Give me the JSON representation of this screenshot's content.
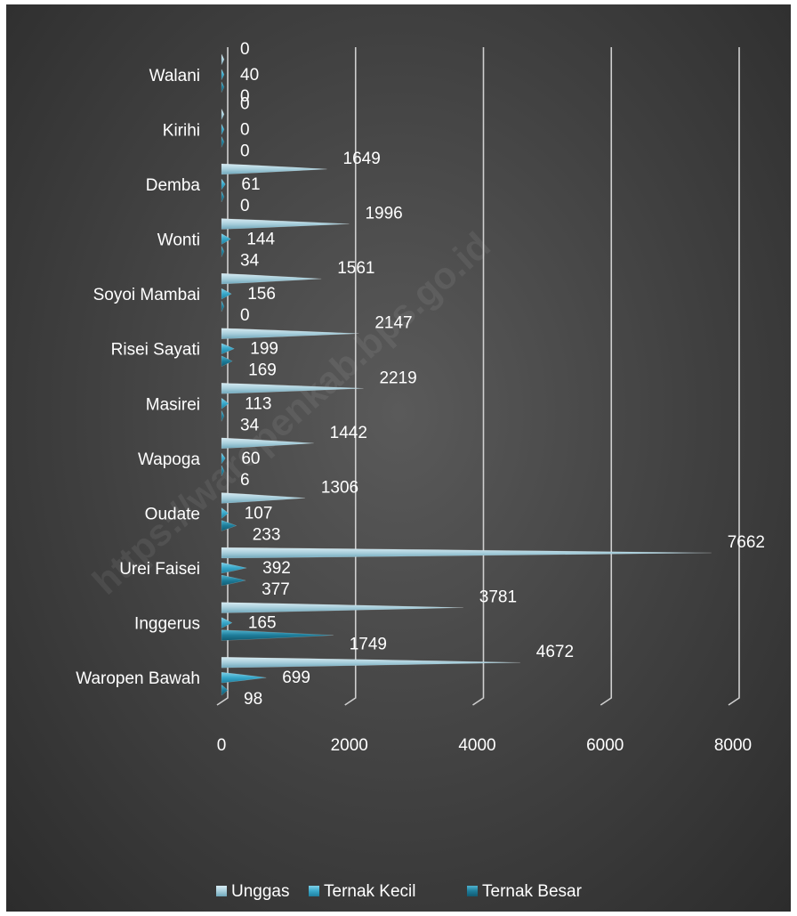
{
  "chart_data": {
    "type": "bar",
    "orientation": "horizontal",
    "categories": [
      "Waropen Bawah",
      "Inggerus",
      "Urei Faisei",
      "Oudate",
      "Wapoga",
      "Masirei",
      "Risei Sayati",
      "Soyoi Mambai",
      "Wonti",
      "Demba",
      "Kirihi",
      "Walani"
    ],
    "series": [
      {
        "name": "Unggas",
        "values": [
          4672,
          3781,
          7662,
          1306,
          1442,
          2219,
          2147,
          1561,
          1996,
          1649,
          0,
          0
        ]
      },
      {
        "name": "Ternak Kecil",
        "values": [
          699,
          165,
          392,
          107,
          60,
          113,
          199,
          156,
          144,
          61,
          0,
          40
        ]
      },
      {
        "name": "Ternak Besar",
        "values": [
          98,
          1749,
          377,
          233,
          6,
          34,
          169,
          0,
          34,
          0,
          0,
          0
        ]
      }
    ],
    "xlim": [
      0,
      8000
    ],
    "xticks": [
      0,
      2000,
      4000,
      6000,
      8000
    ],
    "grid": true,
    "legend_position": "bottom",
    "watermark": "https://waropenkab.bps.go.id",
    "colors": {
      "Unggas": "#a9cfdc",
      "Ternak Kecil": "#38a7c9",
      "Ternak Besar": "#1e7d9a",
      "gridline": "#cfcfcf",
      "text": "#ffffff"
    }
  }
}
